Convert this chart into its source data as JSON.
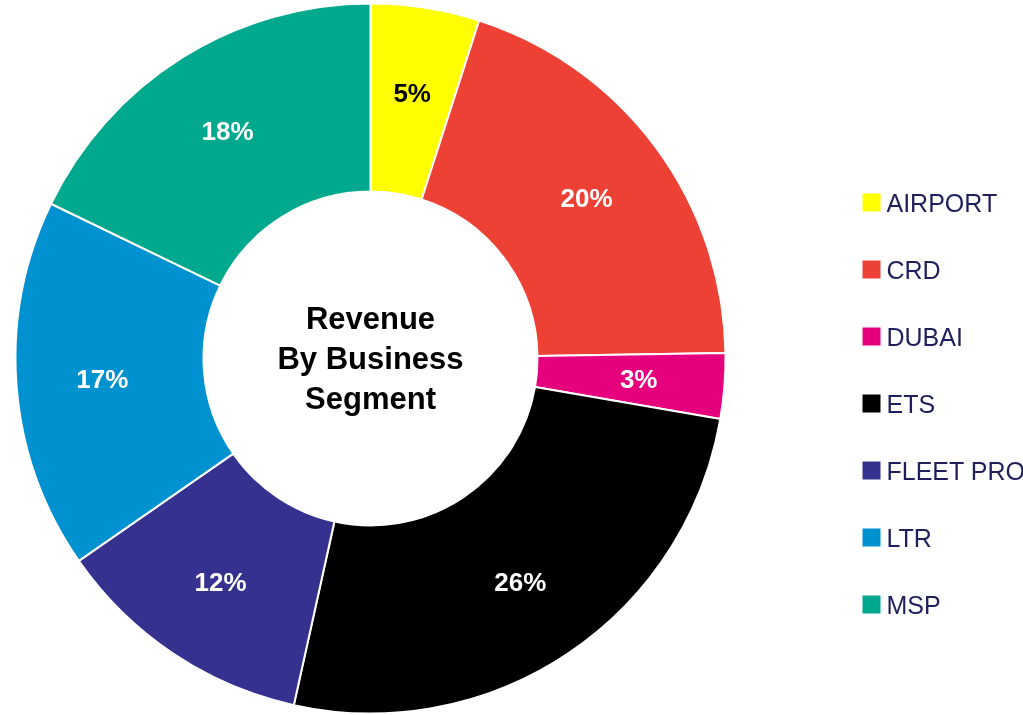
{
  "chart_data": {
    "type": "donut",
    "title": "Revenue\nBy Business\nSegment",
    "categories": [
      "AIRPORT",
      "CRD",
      "DUBAI",
      "ETS",
      "FLEET PRO",
      "LTR",
      "MSP"
    ],
    "values": [
      5,
      20,
      3,
      26,
      12,
      17,
      18
    ],
    "value_labels": [
      "5%",
      "20%",
      "3%",
      "26%",
      "12%",
      "17%",
      "18%"
    ],
    "colors": [
      "#ffff00",
      "#ee4136",
      "#e6007e",
      "#000000",
      "#35318f",
      "#0091d0",
      "#00a88e"
    ],
    "legend": "right"
  }
}
